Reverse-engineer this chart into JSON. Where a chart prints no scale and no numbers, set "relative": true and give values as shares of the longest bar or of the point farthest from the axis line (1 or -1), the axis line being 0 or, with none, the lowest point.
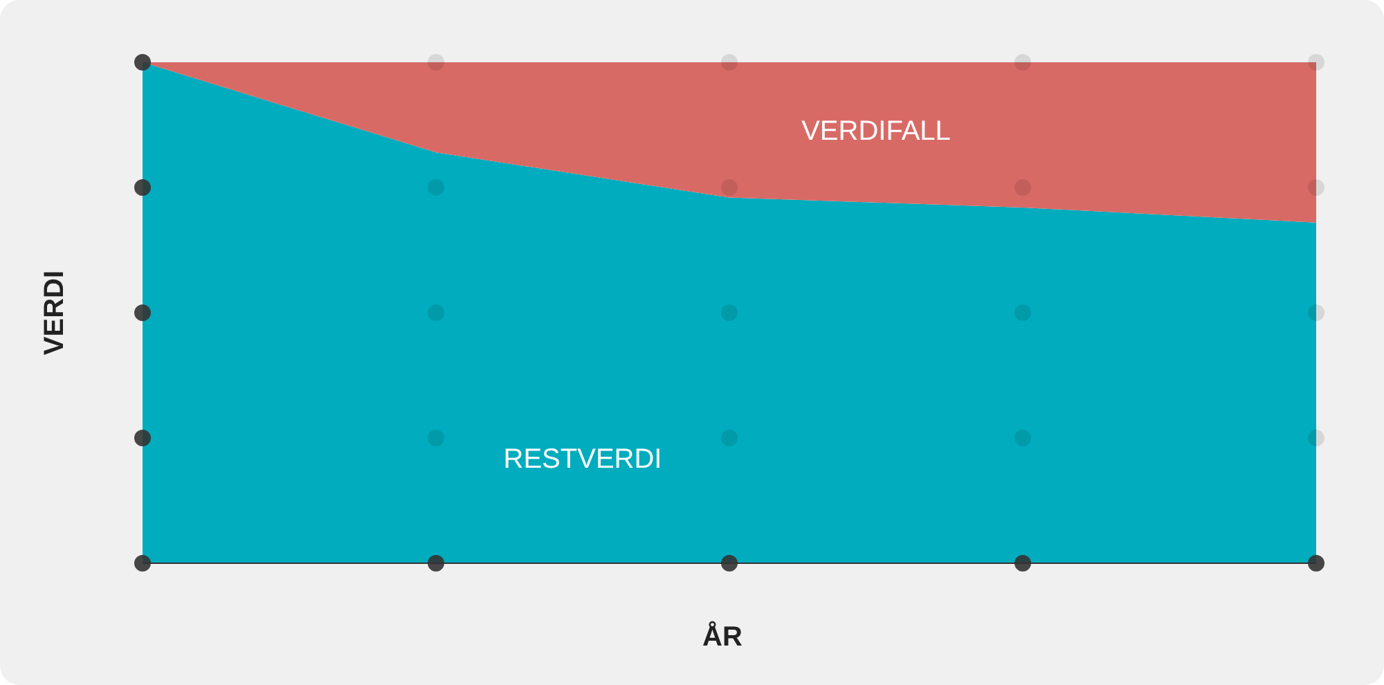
{
  "chart_data": {
    "type": "area",
    "stacked": true,
    "relative": true,
    "xlabel": "ÅR",
    "ylabel": "VERDI",
    "categories": [
      null,
      null,
      null,
      null,
      null
    ],
    "ref_lines": [
      {
        "axis": "y",
        "value": 0.25,
        "color": "#000000",
        "line_style": "dotted"
      },
      {
        "axis": "y",
        "value": 0.5,
        "color": "#000000",
        "line_style": "dotted"
      },
      {
        "axis": "y",
        "value": 0.75,
        "color": "#000000",
        "line_style": "dotted"
      }
    ],
    "series": [
      {
        "name": "RESTVERDI",
        "color": "#00acbd",
        "values": [
          1,
          0.82,
          0.73,
          0.71,
          0.68
        ]
      },
      {
        "name": "VERDIFALL",
        "color": "#d86a66",
        "values": [
          0,
          0.18,
          0.27,
          0.29,
          0.32
        ]
      }
    ]
  }
}
